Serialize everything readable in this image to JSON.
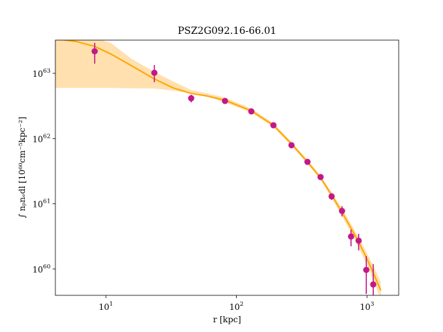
{
  "chart_data": {
    "type": "scatter",
    "title": "PSZ2G092.16-66.01",
    "x_label": "r [kpc]",
    "y_label": "∫ nₚnₑdl [10⁶⁰cm⁻⁵kpc⁻²]",
    "xscale": "log",
    "yscale": "log",
    "xlim": [
      4.1,
      1750
    ],
    "ylim": [
      3.95e+59,
      3.23e+63
    ],
    "xticks": [
      {
        "value": 10,
        "label": "10^1"
      },
      {
        "value": 100,
        "label": "10^2"
      },
      {
        "value": 1000,
        "label": "10^3"
      }
    ],
    "yticks": [
      {
        "value": 1e+60,
        "label": "10^60"
      },
      {
        "value": 1e+61,
        "label": "10^61"
      },
      {
        "value": 1e+62,
        "label": "10^62"
      },
      {
        "value": 1e+63,
        "label": "10^63"
      }
    ],
    "points": {
      "color": "#c2188a",
      "x": [
        8.2,
        23.5,
        45,
        81.7,
        130,
        192,
        264,
        350,
        441,
        536,
        644,
        755,
        864,
        988,
        1117
      ],
      "y": [
        2.18e+63,
        1.02e+63,
        4.15e+62,
        3.77e+62,
        2.61e+62,
        1.6e+62,
        7.9e+61,
        4.39e+61,
        2.57e+61,
        1.3e+61,
        7.76e+60,
        3.15e+60,
        2.72e+60,
        9.7e+59,
        5.8e+59
      ],
      "y_high": [
        2.93e+63,
        1.34e+63,
        4.69e+62,
        4.05e+62,
        2.81e+62,
        1.72e+62,
        8.5e+61,
        4.72e+61,
        2.75e+61,
        1.43e+61,
        9.2e+60,
        4e+60,
        3.46e+60,
        1.58e+60,
        1.19e+60
      ],
      "y_low": [
        1.41e+63,
        7.3e+62,
        3.59e+62,
        3.42e+62,
        2.43e+62,
        1.49e+62,
        7.3e+61,
        4.08e+61,
        2.39e+61,
        1.15e+61,
        6.4e+60,
        2.23e+60,
        1.93e+60,
        4.15e+59,
        3.98e+59
      ]
    },
    "model": {
      "color": "#ffa500",
      "x": [
        4.1,
        5.9,
        8.2,
        10.9,
        15.7,
        23.5,
        32.7,
        45,
        60.3,
        81.7,
        130,
        192,
        264,
        350,
        441,
        536,
        644,
        755,
        864,
        988,
        1117,
        1276
      ],
      "y": [
        3.39e+63,
        3.08e+63,
        2.59e+63,
        1.98e+63,
        1.31e+63,
        8.2e+62,
        5.98e+62,
        4.92e+62,
        4.47e+62,
        3.86e+62,
        2.67e+62,
        1.6e+62,
        8.3e+61,
        4.39e+61,
        2.51e+61,
        1.36e+61,
        7.4e+60,
        4.22e+60,
        2.59e+60,
        1.51e+60,
        8.8e+59,
        4.68e+59
      ]
    },
    "band": {
      "color": "#ffdba0",
      "x": [
        4.1,
        5.9,
        8.2,
        10.9,
        15.7,
        23.5,
        32.7,
        45,
        60.3,
        81.7,
        130,
        192,
        264,
        350,
        441,
        536,
        644,
        755,
        864,
        988,
        1117,
        1276
      ],
      "upper": [
        5e+63,
        3.93e+63,
        3.48e+63,
        2.93e+63,
        1.67e+63,
        1.05e+63,
        7.5e+62,
        5.56e+62,
        4.92e+62,
        4.26e+62,
        2.88e+62,
        1.72e+62,
        8.9e+61,
        4.72e+61,
        2.7e+61,
        1.5e+61,
        8.4e+60,
        4.88e+60,
        3.07e+60,
        1.84e+60,
        1.13e+60,
        6.3e+59
      ],
      "lower": [
        5.98e+62,
        5.98e+62,
        5.98e+62,
        5.98e+62,
        5.91e+62,
        5.85e+62,
        5.43e+62,
        4.92e+62,
        4.36e+62,
        3.59e+62,
        2.49e+62,
        1.49e+62,
        7.7e+61,
        4.08e+61,
        2.33e+61,
        1.23e+61,
        6.5e+60,
        3.55e+60,
        2.13e+60,
        1.21e+60,
        6.9e+59,
        3.49e+59
      ]
    }
  }
}
